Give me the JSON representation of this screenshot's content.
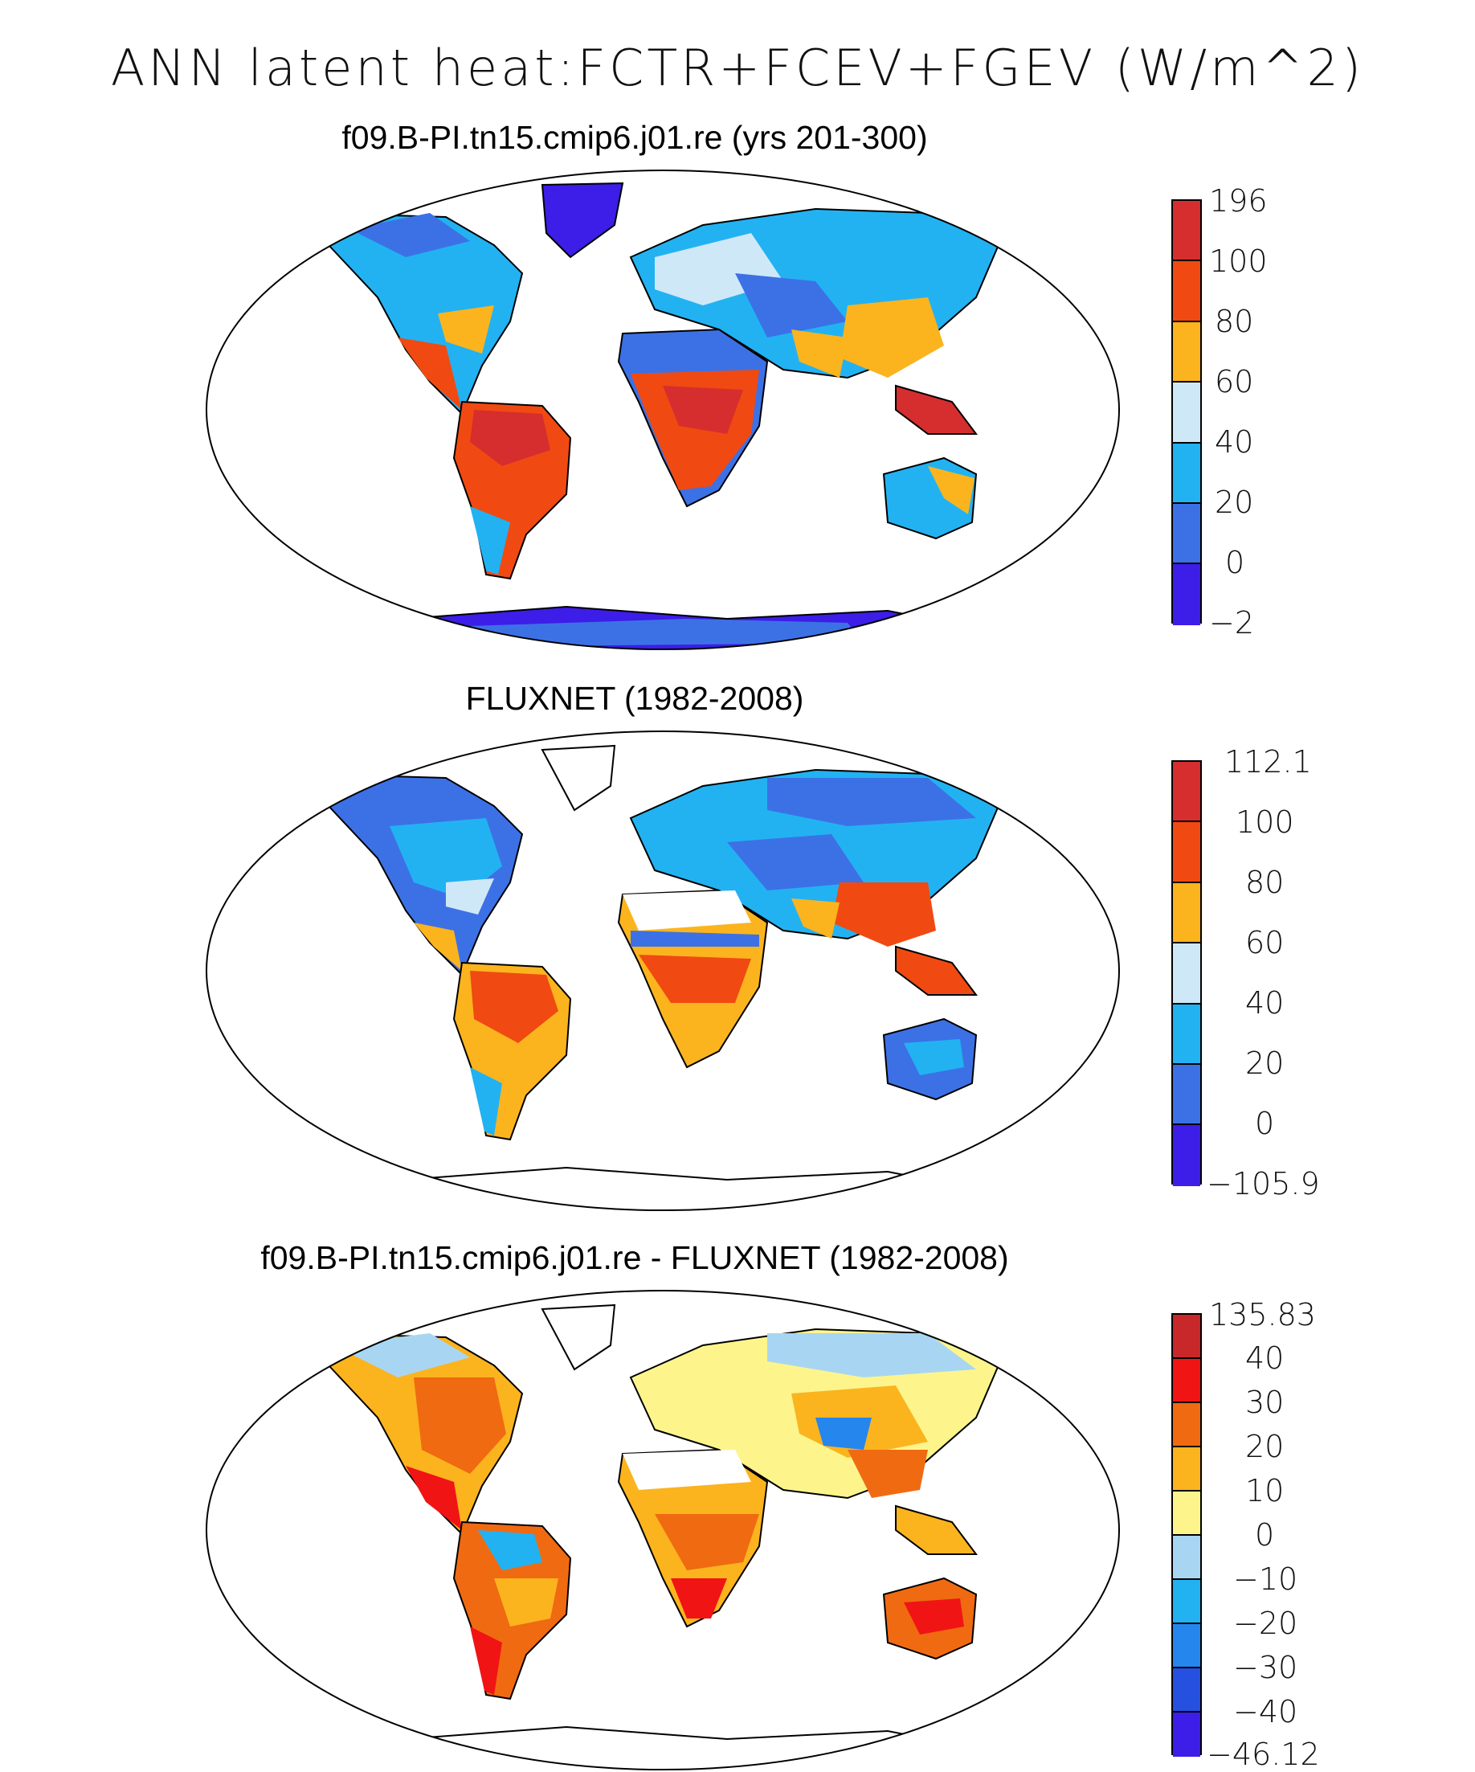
{
  "title": "ANN latent heat:FCTR+FCEV+FGEV (W/m^2)",
  "panels": [
    {
      "title": "f09.B-PI.tn15.cmip6.j01.re (yrs 201-300)",
      "colorbar": {
        "labels": [
          "196",
          "100",
          "80",
          "60",
          "40",
          "20",
          "0",
          "−2"
        ],
        "colors": [
          "#d62e2e",
          "#f04a12",
          "#fbb41e",
          "#cfe8f7",
          "#22b2f2",
          "#3c71e6",
          "#3d1de8"
        ]
      }
    },
    {
      "title": "FLUXNET (1982-2008)",
      "colorbar": {
        "labels": [
          "112.1",
          "100",
          "80",
          "60",
          "40",
          "20",
          "0",
          "−105.9"
        ],
        "colors": [
          "#d62e2e",
          "#f04a12",
          "#fbb41e",
          "#cfe8f7",
          "#22b2f2",
          "#3c71e6",
          "#3d1de8"
        ]
      }
    },
    {
      "title": "f09.B-PI.tn15.cmip6.j01.re - FLUXNET (1982-2008)",
      "colorbar": {
        "labels": [
          "135.83",
          "40",
          "30",
          "20",
          "10",
          "0",
          "−10",
          "−20",
          "−30",
          "−40",
          "−46.12"
        ],
        "colors": [
          "#c8282a",
          "#f01414",
          "#f06a12",
          "#fbb41e",
          "#fdf58c",
          "#a8d6f2",
          "#22b2f2",
          "#2586ee",
          "#2650e0",
          "#3d1de8"
        ]
      }
    }
  ]
}
